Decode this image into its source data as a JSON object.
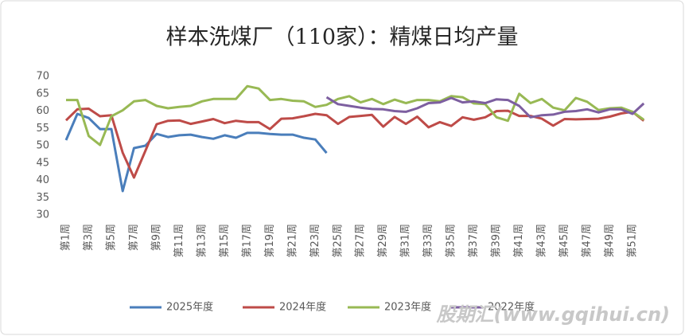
{
  "chart_data": {
    "type": "line",
    "title": "样本洗煤厂（110家）：精煤日均产量",
    "categories": [
      "第1周",
      null,
      "第3周",
      null,
      "第5周",
      null,
      "第7周",
      null,
      "第9周",
      null,
      "第11周",
      null,
      "第13周",
      null,
      "第15周",
      null,
      "第17周",
      null,
      "第19周",
      null,
      "第21周",
      null,
      "第23周",
      null,
      "第25周",
      null,
      "第27周",
      null,
      "第29周",
      null,
      "第31周",
      null,
      "第33周",
      null,
      "第35周",
      null,
      "第37周",
      null,
      "第39周",
      null,
      "第41周",
      null,
      "第43周",
      null,
      "第45周",
      null,
      "第47周",
      null,
      "第49周",
      null,
      "第51周",
      null
    ],
    "series": [
      {
        "name": "2025年度",
        "color": "#4a7ebb",
        "values": [
          51.6,
          59.2,
          58,
          54.8,
          54.8,
          36.9,
          49.3,
          50,
          53.4,
          52.5,
          53,
          53.2,
          52.5,
          52,
          53,
          52.3,
          53.7,
          53.7,
          53.4,
          53.2,
          53.2,
          52.3,
          51.8,
          47.9,
          null,
          null,
          null,
          null,
          null,
          null,
          null,
          null,
          null,
          null,
          null,
          null,
          null,
          null,
          null,
          null,
          null,
          null,
          null,
          null,
          null,
          null,
          null,
          null,
          null,
          null,
          null,
          null
        ]
      },
      {
        "name": "2024年度",
        "color": "#be4b48",
        "values": [
          57.3,
          60.5,
          60.7,
          58.5,
          58.8,
          48,
          40.8,
          48.5,
          56.2,
          57.2,
          57.3,
          56.3,
          57,
          57.7,
          56.5,
          57.2,
          56.8,
          56.8,
          54.8,
          57.8,
          57.9,
          58.5,
          59.2,
          58.8,
          56.3,
          58.3,
          58.6,
          58.9,
          55.5,
          58.3,
          56.3,
          58.4,
          55.3,
          56.8,
          55.7,
          58.2,
          57.5,
          58.2,
          60,
          60.1,
          58.6,
          58.6,
          57.8,
          55.8,
          57.7,
          57.6,
          57.7,
          57.8,
          58.4,
          59.3,
          59.8,
          57.2
        ]
      },
      {
        "name": "2023年度",
        "color": "#98b954",
        "values": [
          63.2,
          63.2,
          52.8,
          50.2,
          58.5,
          60.2,
          62.8,
          63.2,
          61.5,
          60.8,
          61.2,
          61.5,
          62.8,
          63.5,
          63.5,
          63.5,
          67.2,
          66.5,
          63.2,
          63.5,
          63,
          62.8,
          61.2,
          61.8,
          63.5,
          64.3,
          62.5,
          63.5,
          62,
          63.3,
          62.3,
          63.2,
          63.2,
          62.8,
          64.3,
          64,
          62.2,
          62,
          58.2,
          57.2,
          65,
          62.3,
          63.5,
          61,
          60.2,
          63.8,
          62.7,
          60.3,
          60.8,
          61,
          59.8,
          57.5
        ]
      },
      {
        "name": "2022年度",
        "color": "#7d5fa0",
        "values": [
          null,
          null,
          null,
          null,
          null,
          null,
          null,
          null,
          null,
          null,
          null,
          null,
          null,
          null,
          null,
          null,
          null,
          null,
          null,
          null,
          null,
          null,
          null,
          64,
          62,
          61.5,
          61,
          60.6,
          60.5,
          60,
          59.8,
          60.8,
          62.3,
          62.5,
          63.8,
          62.5,
          62.8,
          62.3,
          63.4,
          63.2,
          61.5,
          58.2,
          58.8,
          59,
          59.8,
          60,
          60.5,
          59.6,
          60.5,
          60.5,
          59.2,
          62.2
        ]
      }
    ],
    "ylim": [
      30,
      70
    ],
    "yticks": [
      30,
      35,
      40,
      45,
      50,
      55,
      60,
      65,
      70
    ],
    "grid": false,
    "legend": "bottom"
  },
  "watermark": "股期汇(www.gqihui.cn)"
}
